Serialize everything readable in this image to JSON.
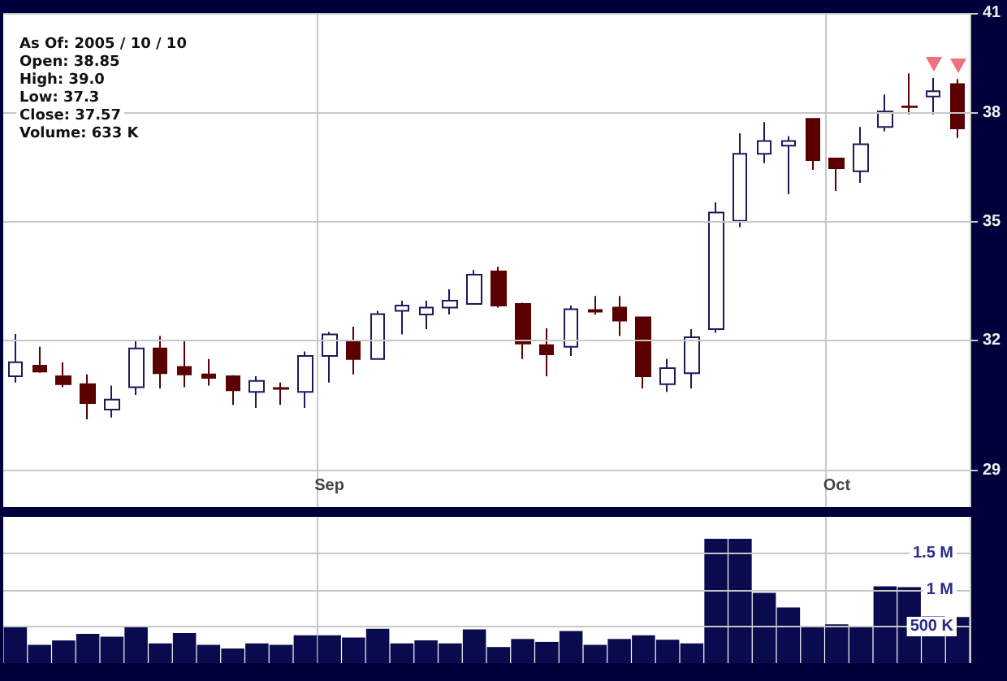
{
  "chart_data": [
    {
      "type": "candlestick",
      "annotations": [
        "As Of: 2005 / 10 / 10",
        "Open: 38.85",
        "High: 39.0",
        "Low: 37.3",
        "Close: 37.57",
        "Volume: 633 K"
      ],
      "categories": [
        null,
        null,
        null,
        null,
        null,
        null,
        null,
        null,
        null,
        null,
        null,
        null,
        null,
        "Sep",
        null,
        null,
        null,
        null,
        null,
        null,
        null,
        null,
        null,
        null,
        null,
        null,
        null,
        null,
        null,
        null,
        null,
        null,
        null,
        null,
        "Oct",
        null,
        null,
        null,
        null,
        null
      ],
      "ohlc": [
        [
          31.14,
          32.15,
          30.99,
          31.47
        ],
        [
          31.39,
          31.84,
          31.22,
          31.25
        ],
        [
          31.14,
          31.47,
          30.88,
          30.95
        ],
        [
          30.95,
          31.18,
          30.14,
          30.51
        ],
        [
          30.36,
          30.92,
          30.18,
          30.59
        ],
        [
          30.88,
          31.99,
          30.7,
          31.8
        ],
        [
          31.8,
          32.1,
          30.85,
          31.21
        ],
        [
          31.36,
          31.99,
          30.88,
          31.18
        ],
        [
          31.18,
          31.55,
          30.92,
          31.1
        ],
        [
          31.14,
          31.16,
          30.47,
          30.81
        ],
        [
          30.77,
          31.14,
          30.4,
          31.03
        ],
        [
          30.86,
          30.99,
          30.47,
          30.84
        ],
        [
          30.77,
          31.73,
          30.4,
          31.62
        ],
        [
          31.62,
          32.2,
          30.99,
          32.14
        ],
        [
          31.99,
          32.33,
          31.18,
          31.55
        ],
        [
          31.55,
          32.72,
          31.55,
          32.64
        ],
        [
          32.72,
          32.97,
          32.14,
          32.85
        ],
        [
          32.63,
          32.97,
          32.27,
          32.8
        ],
        [
          32.8,
          33.26,
          32.63,
          32.97
        ],
        [
          32.89,
          33.75,
          32.89,
          33.63
        ],
        [
          33.71,
          33.83,
          32.8,
          32.85
        ],
        [
          32.89,
          32.92,
          31.55,
          31.92
        ],
        [
          31.88,
          32.29,
          31.14,
          31.66
        ],
        [
          31.84,
          32.85,
          31.62,
          32.76
        ],
        [
          32.74,
          33.09,
          32.63,
          32.7
        ],
        [
          32.8,
          33.09,
          32.1,
          32.48
        ],
        [
          32.56,
          32.58,
          30.85,
          31.14
        ],
        [
          30.95,
          31.55,
          30.77,
          31.33
        ],
        [
          31.21,
          32.27,
          30.85,
          32.07
        ],
        [
          32.27,
          35.52,
          32.18,
          35.25
        ],
        [
          35.03,
          37.43,
          34.86,
          36.85
        ],
        [
          36.85,
          37.75,
          36.59,
          37.21
        ],
        [
          37.08,
          37.35,
          35.74,
          37.21
        ],
        [
          37.84,
          37.86,
          36.41,
          36.68
        ],
        [
          36.72,
          36.74,
          35.83,
          36.45
        ],
        [
          36.37,
          37.61,
          36.05,
          37.12
        ],
        [
          37.61,
          38.54,
          37.48,
          38.05
        ],
        [
          38.2,
          39.17,
          37.97,
          38.18
        ],
        [
          38.49,
          39.03,
          37.97,
          38.64
        ],
        [
          38.85,
          39.0,
          37.3,
          37.57
        ]
      ],
      "log": true,
      "ylim": [
        28.2,
        41
      ],
      "yticks": [
        29,
        32,
        35,
        38,
        41
      ],
      "grid": true
    },
    {
      "type": "bar",
      "categories": [
        null,
        null,
        null,
        null,
        null,
        null,
        null,
        null,
        null,
        null,
        null,
        null,
        null,
        null,
        null,
        null,
        null,
        null,
        null,
        null,
        null,
        null,
        null,
        null,
        null,
        null,
        null,
        null,
        null,
        null,
        null,
        null,
        null,
        null,
        null,
        null,
        null,
        null,
        null,
        null
      ],
      "values": [
        500000,
        250000,
        310000,
        400000,
        360000,
        500000,
        270000,
        410000,
        250000,
        200000,
        270000,
        250000,
        380000,
        380000,
        350000,
        470000,
        270000,
        310000,
        270000,
        460000,
        220000,
        330000,
        290000,
        440000,
        250000,
        330000,
        380000,
        320000,
        270000,
        1700000,
        1700000,
        960000,
        760000,
        510000,
        530000,
        510000,
        1050000,
        1040000,
        640000,
        630000
      ],
      "color": "#0a0a4e",
      "ylim": [
        0,
        2000000
      ],
      "yticks": [
        {
          "value": 500000,
          "label": "500 K"
        },
        {
          "value": 1000000,
          "label": "1 M"
        },
        {
          "value": 1500000,
          "label": "1.5 M"
        }
      ],
      "tick_labels": "y",
      "grid": true
    }
  ]
}
